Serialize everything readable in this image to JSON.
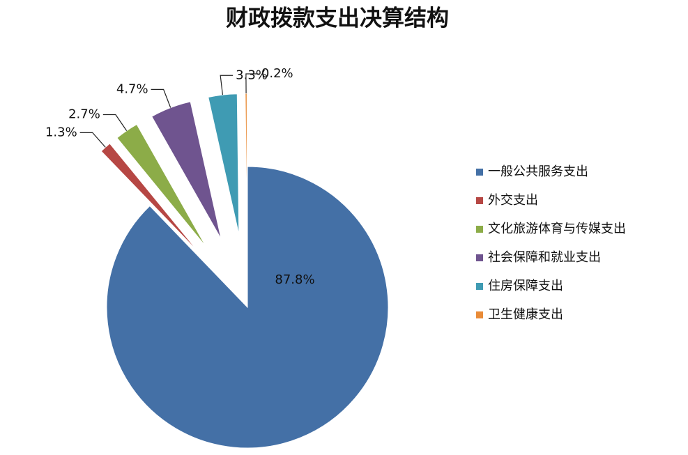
{
  "chart_data": {
    "type": "pie",
    "title": "财政拨款支出决算结构",
    "categories": [
      "一般公共服务支出",
      "外交支出",
      "文化旅游体育与传媒支出",
      "社会保障和就业支出",
      "住房保障支出",
      "卫生健康支出"
    ],
    "values": [
      87.8,
      1.3,
      2.7,
      4.7,
      3.3,
      0.2
    ],
    "value_labels": [
      "87.8%",
      "1.3%",
      "2.7%",
      "4.7%",
      "3.3%",
      "0.2%"
    ],
    "colors": [
      "#4470a6",
      "#b64744",
      "#8cac48",
      "#6f548f",
      "#3f9bb3",
      "#e98b37"
    ]
  }
}
